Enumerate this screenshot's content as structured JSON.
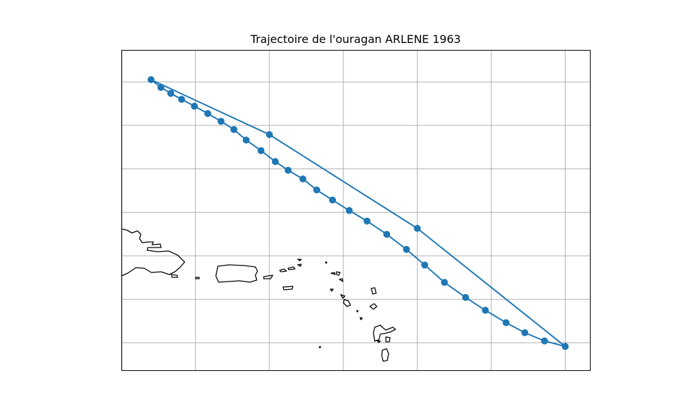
{
  "chart_data": {
    "type": "line",
    "title": "Trajectoire de l'ouragan ARLENE 1963",
    "xlabel": "",
    "ylabel": "",
    "grid": true,
    "legend": "none",
    "x_unit": "longitude (degrees)",
    "y_unit": "latitude (degrees)",
    "xlim": [
      -68.0,
      -58.5
    ],
    "ylim": [
      13.7,
      20.7
    ],
    "track_color": "#1f77b4",
    "coastline_color": "#000000",
    "grid_color": "#b0b0b0",
    "series": [
      {
        "points": [
          {
            "lon": -67.4,
            "lat": 20.05
          },
          {
            "lon": -67.2,
            "lat": 19.88
          },
          {
            "lon": -67.0,
            "lat": 19.75
          },
          {
            "lon": -66.78,
            "lat": 19.62
          },
          {
            "lon": -66.52,
            "lat": 19.47
          },
          {
            "lon": -66.25,
            "lat": 19.31
          },
          {
            "lon": -65.98,
            "lat": 19.14
          },
          {
            "lon": -65.72,
            "lat": 18.96
          },
          {
            "lon": -65.47,
            "lat": 18.73
          },
          {
            "lon": -65.17,
            "lat": 18.5
          },
          {
            "lon": -64.88,
            "lat": 18.26
          },
          {
            "lon": -64.62,
            "lat": 18.07
          },
          {
            "lon": -64.32,
            "lat": 17.88
          },
          {
            "lon": -64.04,
            "lat": 17.64
          },
          {
            "lon": -63.72,
            "lat": 17.42
          },
          {
            "lon": -63.38,
            "lat": 17.19
          },
          {
            "lon": -63.02,
            "lat": 16.96
          },
          {
            "lon": -62.62,
            "lat": 16.67
          },
          {
            "lon": -62.22,
            "lat": 16.34
          },
          {
            "lon": -61.85,
            "lat": 16.0
          },
          {
            "lon": -61.45,
            "lat": 15.62
          },
          {
            "lon": -61.02,
            "lat": 15.29
          },
          {
            "lon": -60.62,
            "lat": 15.01
          },
          {
            "lon": -60.2,
            "lat": 14.74
          },
          {
            "lon": -59.82,
            "lat": 14.52
          },
          {
            "lon": -59.42,
            "lat": 14.34
          },
          {
            "lon": -59.0,
            "lat": 14.22
          },
          {
            "lon": -62.0,
            "lat": 16.8
          },
          {
            "lon": -65.0,
            "lat": 18.85
          },
          {
            "lon": -67.4,
            "lat": 20.05
          }
        ]
      }
    ]
  }
}
